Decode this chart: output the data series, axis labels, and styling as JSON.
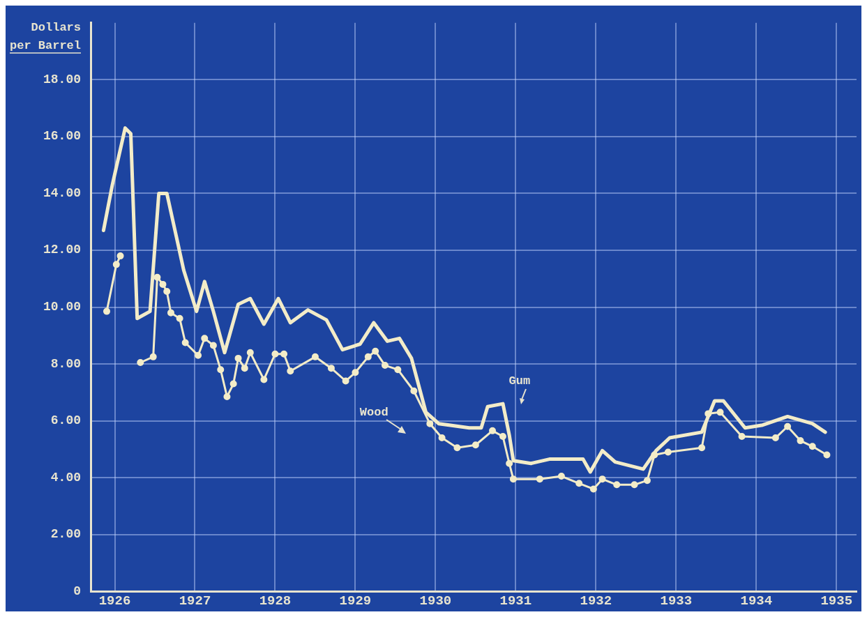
{
  "chart_data": {
    "type": "line",
    "ylabel": "Dollars per Barrel",
    "xlim": [
      1925.7,
      1935.25
    ],
    "ylim": [
      0,
      20
    ],
    "xticks": [
      1926,
      1927,
      1928,
      1929,
      1930,
      1931,
      1932,
      1933,
      1934,
      1935
    ],
    "yticks": [
      0,
      {
        "value": 2,
        "label": "2.00"
      },
      {
        "value": 4,
        "label": "4.00"
      },
      {
        "value": 6,
        "label": "6.00"
      },
      {
        "value": 8,
        "label": "8.00"
      },
      {
        "value": 10,
        "label": "10.00"
      },
      {
        "value": 12,
        "label": "12.00"
      },
      {
        "value": 14,
        "label": "14.00"
      },
      {
        "value": 16,
        "label": "16.00"
      },
      {
        "value": 18,
        "label": "18.00"
      }
    ],
    "grid": true,
    "legend": false,
    "line_style": "solid",
    "series": [
      {
        "name": "Gum",
        "color": "#f3ecc8",
        "marker": "none",
        "x": [
          1925.86,
          1925.97,
          1926.13,
          1926.2,
          1926.28,
          1926.44,
          1926.55,
          1926.65,
          1926.86,
          1927.02,
          1927.12,
          1927.23,
          1927.37,
          1927.54,
          1927.69,
          1927.86,
          1928.04,
          1928.19,
          1928.41,
          1928.64,
          1928.84,
          1929.06,
          1929.23,
          1929.4,
          1929.55,
          1929.7,
          1929.88,
          1930.04,
          1930.17,
          1930.42,
          1930.57,
          1930.65,
          1930.84,
          1930.92,
          1930.97,
          1931.19,
          1931.42,
          1931.84,
          1931.93,
          1932.08,
          1932.24,
          1932.59,
          1932.75,
          1932.92,
          1933.32,
          1933.48,
          1933.59,
          1933.86,
          1934.08,
          1934.39,
          1934.7,
          1934.86
        ],
        "values": [
          12.7,
          14.3,
          16.3,
          16.1,
          9.6,
          9.85,
          14.0,
          14.0,
          11.3,
          9.85,
          10.9,
          9.85,
          8.4,
          10.1,
          10.3,
          9.4,
          10.3,
          9.45,
          9.9,
          9.55,
          8.5,
          8.7,
          9.45,
          8.8,
          8.9,
          8.2,
          6.3,
          5.9,
          5.85,
          5.75,
          5.75,
          6.5,
          6.6,
          5.5,
          4.6,
          4.5,
          4.65,
          4.65,
          4.2,
          4.95,
          4.55,
          4.3,
          4.95,
          5.4,
          5.6,
          6.7,
          6.7,
          5.75,
          5.85,
          6.15,
          5.9,
          5.6
        ]
      },
      {
        "name": "Wood",
        "color": "#f3ecc8",
        "marker": "circle",
        "x": [
          1925.9,
          1926.02,
          1926.07,
          1926.2,
          1926.32,
          1926.48,
          1926.53,
          1926.6,
          1926.65,
          1926.7,
          1926.81,
          1926.88,
          1927.04,
          1927.12,
          1927.23,
          1927.32,
          1927.4,
          1927.48,
          1927.54,
          1927.62,
          1927.69,
          1927.86,
          1928.0,
          1928.11,
          1928.19,
          1928.5,
          1928.7,
          1928.88,
          1929.0,
          1929.16,
          1929.25,
          1929.37,
          1929.53,
          1929.73,
          1929.93,
          1930.08,
          1930.27,
          1930.5,
          1930.71,
          1930.84,
          1930.92,
          1930.97,
          1931.3,
          1931.57,
          1931.79,
          1931.97,
          1932.08,
          1932.26,
          1932.48,
          1932.64,
          1932.73,
          1932.9,
          1933.32,
          1933.4,
          1933.55,
          1933.82,
          1934.24,
          1934.39,
          1934.55,
          1934.7,
          1934.88
        ],
        "values": [
          9.85,
          11.5,
          11.8,
          null,
          8.05,
          8.25,
          11.05,
          10.8,
          10.55,
          9.8,
          9.6,
          8.75,
          8.3,
          8.9,
          8.65,
          7.8,
          6.85,
          7.3,
          8.2,
          7.85,
          8.4,
          7.45,
          8.35,
          8.35,
          7.75,
          8.25,
          7.85,
          7.4,
          7.7,
          8.25,
          8.45,
          7.95,
          7.8,
          7.05,
          5.9,
          5.4,
          5.05,
          5.15,
          5.65,
          5.45,
          4.5,
          3.95,
          3.95,
          4.05,
          3.8,
          3.6,
          3.95,
          3.75,
          3.75,
          3.9,
          4.8,
          4.9,
          5.05,
          6.25,
          6.3,
          5.45,
          5.4,
          5.8,
          5.3,
          5.1,
          4.8
        ]
      }
    ]
  }
}
